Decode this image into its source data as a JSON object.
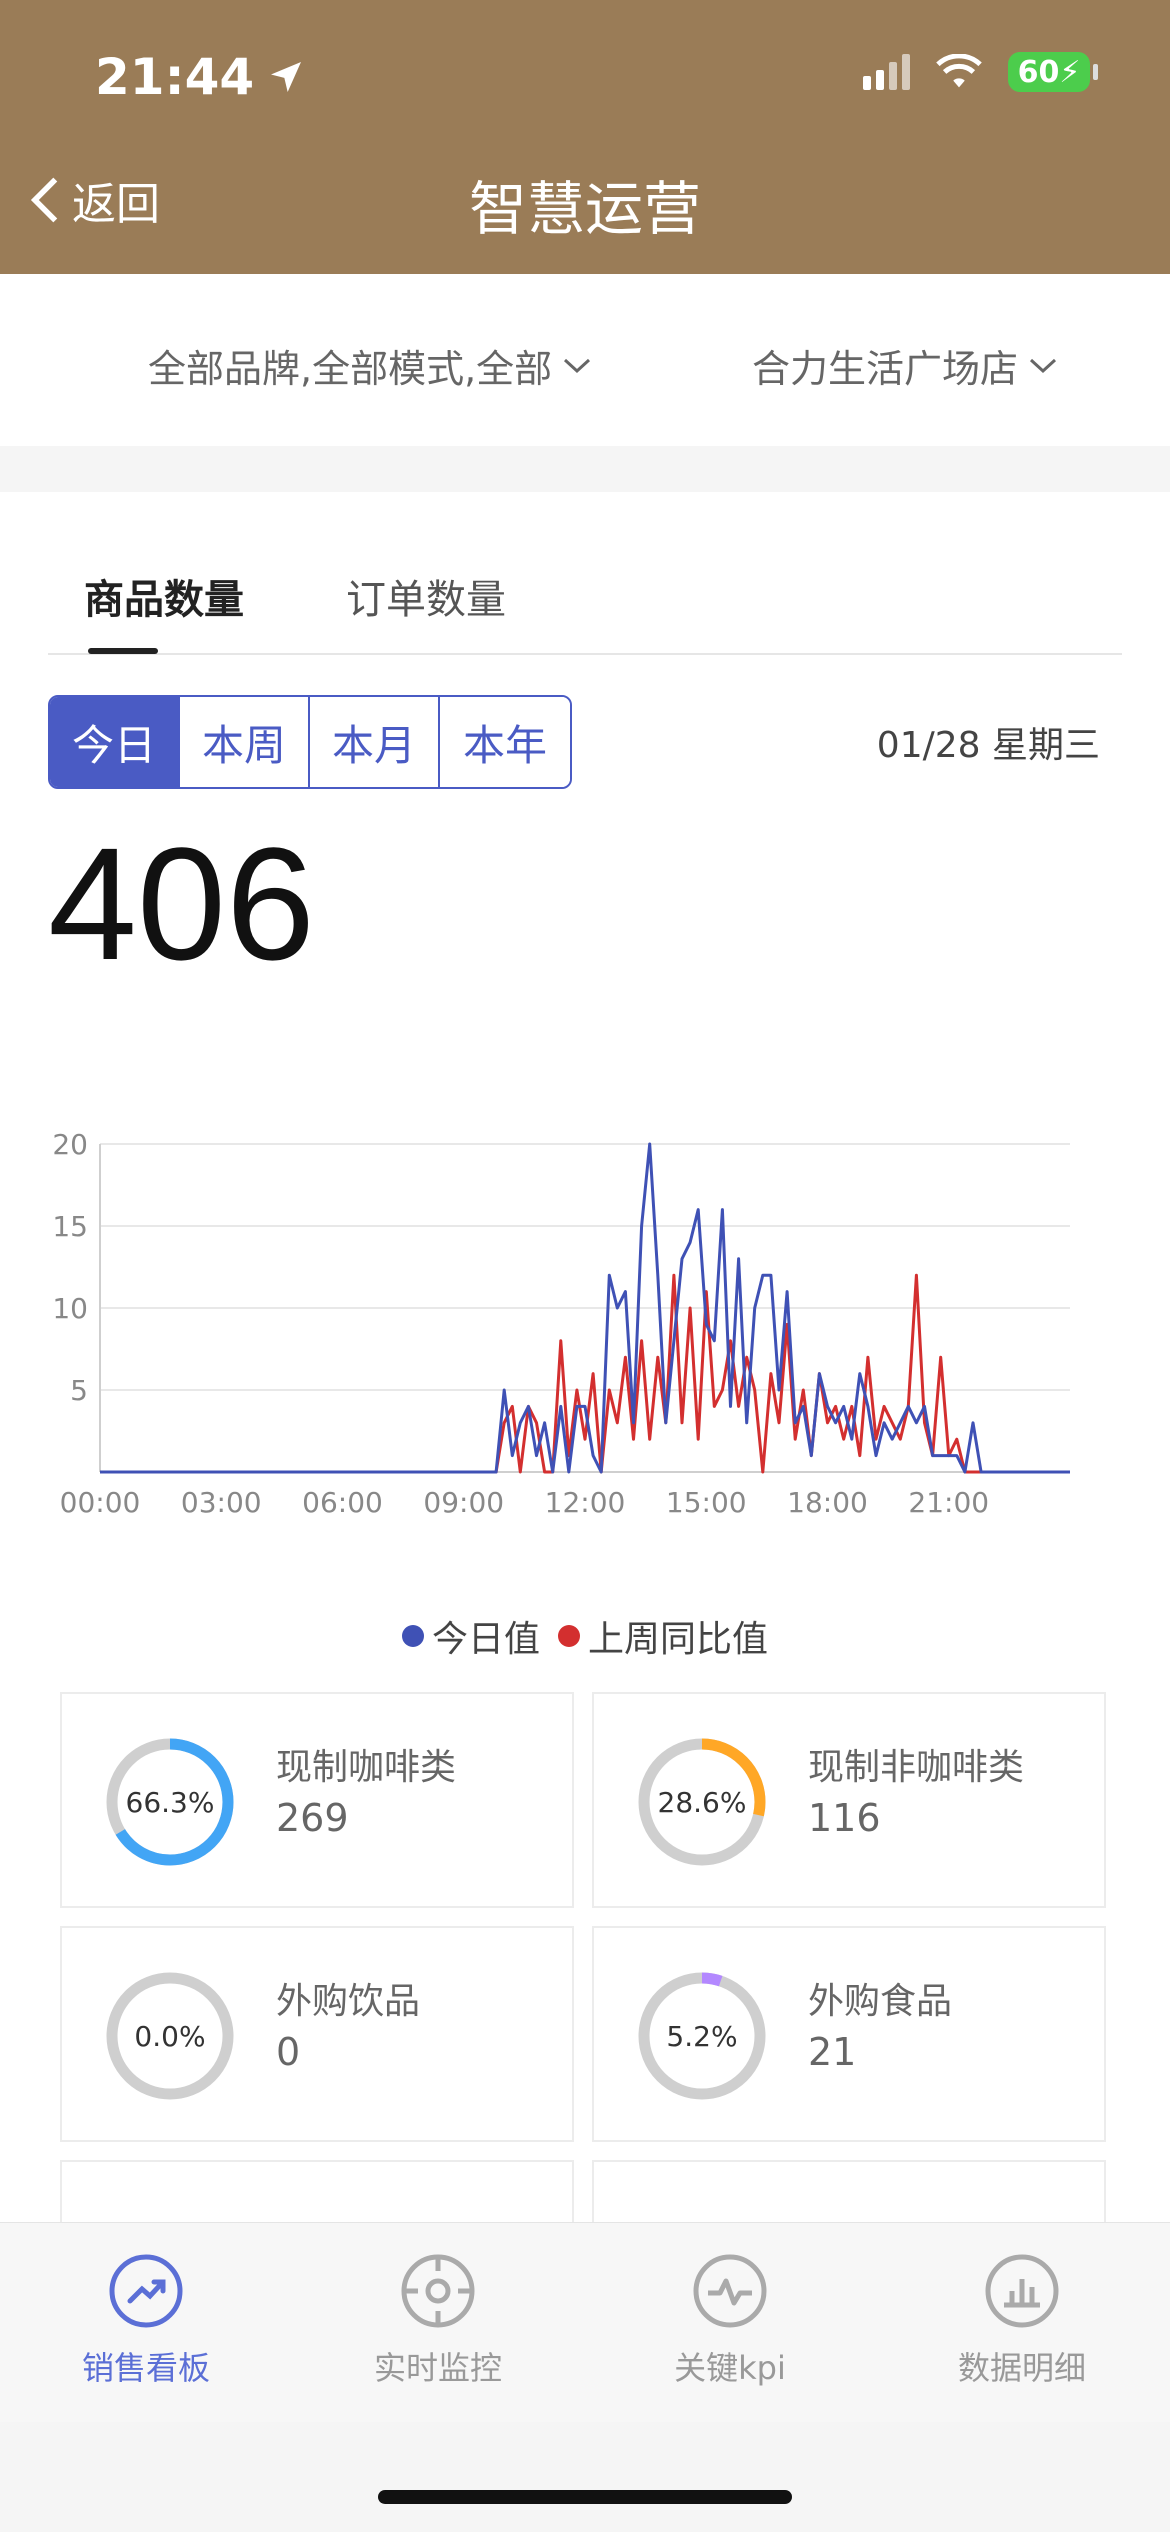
{
  "status": {
    "time": "21:44",
    "battery": "60"
  },
  "nav": {
    "back_label": "返回",
    "title": "智慧运营"
  },
  "filters": {
    "brand": "全部品牌,全部模式,全部",
    "store": "合力生活广场店"
  },
  "tabs": [
    {
      "label": "商品数量"
    },
    {
      "label": "订单数量"
    }
  ],
  "periods": [
    {
      "label": "今日"
    },
    {
      "label": "本周"
    },
    {
      "label": "本月"
    },
    {
      "label": "本年"
    }
  ],
  "date": "01/28 星期三",
  "total": "406",
  "chart_data": {
    "type": "line",
    "x_tick_labels": [
      "00:00",
      "03:00",
      "06:00",
      "09:00",
      "12:00",
      "15:00",
      "18:00",
      "21:00"
    ],
    "x_range_hours": [
      0,
      24
    ],
    "ylim": [
      0,
      20
    ],
    "y_ticks": [
      5,
      10,
      15,
      20
    ],
    "grid": true,
    "legend_position": "bottom",
    "series": [
      {
        "name": "今日值",
        "color": "#3f51b5",
        "points": [
          [
            0,
            0
          ],
          [
            9.8,
            0
          ],
          [
            10,
            5
          ],
          [
            10.2,
            1
          ],
          [
            10.4,
            3
          ],
          [
            10.6,
            4
          ],
          [
            10.8,
            1
          ],
          [
            11,
            3
          ],
          [
            11.2,
            0
          ],
          [
            11.4,
            4
          ],
          [
            11.6,
            0
          ],
          [
            11.8,
            4
          ],
          [
            12,
            4
          ],
          [
            12.2,
            1
          ],
          [
            12.4,
            0
          ],
          [
            12.6,
            12
          ],
          [
            12.8,
            10
          ],
          [
            13,
            11
          ],
          [
            13.2,
            3
          ],
          [
            13.4,
            15
          ],
          [
            13.6,
            20
          ],
          [
            13.8,
            12
          ],
          [
            14,
            3
          ],
          [
            14.2,
            8
          ],
          [
            14.4,
            13
          ],
          [
            14.6,
            14
          ],
          [
            14.8,
            16
          ],
          [
            15,
            9
          ],
          [
            15.2,
            8
          ],
          [
            15.4,
            16
          ],
          [
            15.6,
            4
          ],
          [
            15.8,
            13
          ],
          [
            16,
            3
          ],
          [
            16.2,
            10
          ],
          [
            16.4,
            12
          ],
          [
            16.6,
            12
          ],
          [
            16.8,
            5
          ],
          [
            17,
            11
          ],
          [
            17.2,
            3
          ],
          [
            17.4,
            4
          ],
          [
            17.6,
            1
          ],
          [
            17.8,
            6
          ],
          [
            18,
            4
          ],
          [
            18.2,
            3
          ],
          [
            18.4,
            4
          ],
          [
            18.6,
            2
          ],
          [
            18.8,
            6
          ],
          [
            19,
            4
          ],
          [
            19.2,
            1
          ],
          [
            19.4,
            3
          ],
          [
            19.6,
            2
          ],
          [
            19.8,
            3
          ],
          [
            20,
            4
          ],
          [
            20.2,
            3
          ],
          [
            20.4,
            4
          ],
          [
            20.6,
            1
          ],
          [
            20.8,
            1
          ],
          [
            21,
            1
          ],
          [
            21.2,
            1
          ],
          [
            21.4,
            0
          ],
          [
            21.6,
            3
          ],
          [
            21.8,
            0
          ],
          [
            24,
            0
          ]
        ]
      },
      {
        "name": "上周同比值",
        "color": "#d32f2f",
        "points": [
          [
            0,
            0
          ],
          [
            9.8,
            0
          ],
          [
            10,
            3
          ],
          [
            10.2,
            4
          ],
          [
            10.4,
            0
          ],
          [
            10.6,
            4
          ],
          [
            10.8,
            3
          ],
          [
            11,
            0
          ],
          [
            11.2,
            0
          ],
          [
            11.4,
            8
          ],
          [
            11.6,
            1
          ],
          [
            11.8,
            5
          ],
          [
            12,
            2
          ],
          [
            12.2,
            6
          ],
          [
            12.4,
            0
          ],
          [
            12.6,
            5
          ],
          [
            12.8,
            3
          ],
          [
            13,
            7
          ],
          [
            13.2,
            2
          ],
          [
            13.4,
            8
          ],
          [
            13.6,
            2
          ],
          [
            13.8,
            7
          ],
          [
            14,
            3
          ],
          [
            14.2,
            12
          ],
          [
            14.4,
            3
          ],
          [
            14.6,
            10
          ],
          [
            14.8,
            2
          ],
          [
            15,
            11
          ],
          [
            15.2,
            4
          ],
          [
            15.4,
            5
          ],
          [
            15.6,
            8
          ],
          [
            15.8,
            4
          ],
          [
            16,
            7
          ],
          [
            16.2,
            5
          ],
          [
            16.4,
            0
          ],
          [
            16.6,
            6
          ],
          [
            16.8,
            3
          ],
          [
            17,
            9
          ],
          [
            17.2,
            2
          ],
          [
            17.4,
            5
          ],
          [
            17.6,
            1
          ],
          [
            17.8,
            6
          ],
          [
            18,
            3
          ],
          [
            18.2,
            4
          ],
          [
            18.4,
            2
          ],
          [
            18.6,
            4
          ],
          [
            18.8,
            1
          ],
          [
            19,
            7
          ],
          [
            19.2,
            2
          ],
          [
            19.4,
            4
          ],
          [
            19.6,
            3
          ],
          [
            19.8,
            2
          ],
          [
            20,
            4
          ],
          [
            20.2,
            12
          ],
          [
            20.4,
            3
          ],
          [
            20.6,
            1
          ],
          [
            20.8,
            7
          ],
          [
            21,
            1
          ],
          [
            21.2,
            2
          ],
          [
            21.4,
            0
          ],
          [
            24,
            0
          ]
        ]
      }
    ]
  },
  "legend": [
    {
      "label": "今日值",
      "color": "#3f51b5"
    },
    {
      "label": "上周同比值",
      "color": "#d32f2f"
    }
  ],
  "categories": [
    {
      "name": "现制咖啡类",
      "value": "269",
      "percent": "66.3%",
      "fraction": 0.663,
      "color": "#42a5f5"
    },
    {
      "name": "现制非咖啡类",
      "value": "116",
      "percent": "28.6%",
      "fraction": 0.286,
      "color": "#ffa726"
    },
    {
      "name": "外购饮品",
      "value": "0",
      "percent": "0.0%",
      "fraction": 0.0,
      "color": "#42a5f5"
    },
    {
      "name": "外购食品",
      "value": "21",
      "percent": "5.2%",
      "fraction": 0.052,
      "color": "#b388ff"
    }
  ],
  "tabbar": [
    {
      "label": "销售看板",
      "icon": "trend-icon"
    },
    {
      "label": "实时监控",
      "icon": "target-icon"
    },
    {
      "label": "关键kpi",
      "icon": "pulse-icon"
    },
    {
      "label": "数据明细",
      "icon": "bar-chart-icon"
    }
  ]
}
